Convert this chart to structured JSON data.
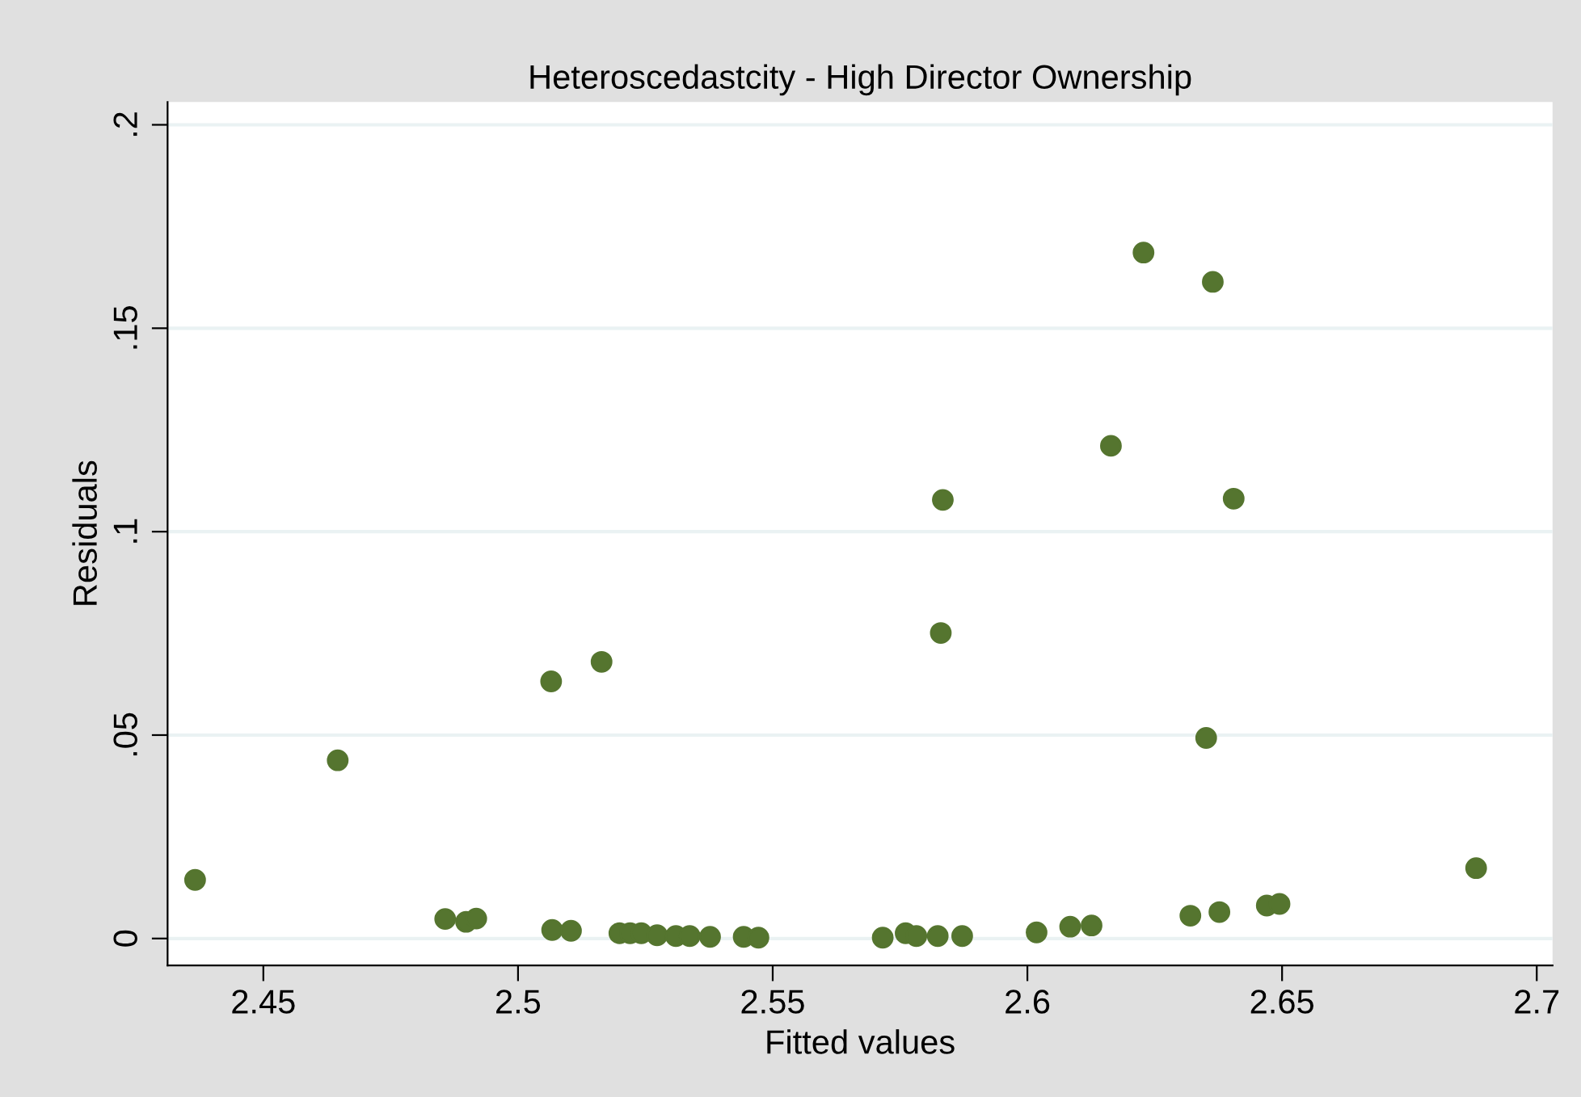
{
  "chart_data": {
    "type": "scatter",
    "title": "Heteroscedastcity - High Director Ownership",
    "xlabel": "Fitted values",
    "ylabel": "Residuals",
    "x": [
      2.4366,
      2.4646,
      2.4857,
      2.4898,
      2.4918,
      2.5065,
      2.5067,
      2.5104,
      2.5164,
      2.5183,
      2.5199,
      2.522,
      2.5242,
      2.5273,
      2.531,
      2.5337,
      2.5377,
      2.5443,
      2.5472,
      2.5716,
      2.5761,
      2.5782,
      2.5814,
      2.5824,
      2.5872,
      2.583,
      2.5834,
      2.6018,
      2.6084,
      2.6126,
      2.6164,
      2.6228,
      2.632,
      2.6351,
      2.6364,
      2.6377,
      2.6405,
      2.647,
      2.6495,
      2.6881
    ],
    "series": [
      {
        "color": "#55752f",
        "values": [
          0.0144,
          0.0438,
          0.0048,
          0.0041,
          0.0049,
          0.0632,
          0.0021,
          0.0019,
          0.068,
          null,
          0.0013,
          0.0013,
          0.0013,
          0.0008,
          0.0006,
          0.0006,
          0.0004,
          0.0004,
          0.0002,
          0.0002,
          0.0013,
          0.0006,
          null,
          0.0006,
          0.0006,
          0.0751,
          0.1078,
          0.0015,
          0.0029,
          0.0032,
          0.1211,
          0.1686,
          0.0056,
          0.0493,
          0.1614,
          0.0065,
          0.1081,
          0.0081,
          0.0085,
          0.0173
        ]
      }
    ],
    "xlim": [
      2.4312,
      2.7031
    ],
    "ylim": [
      -0.0066,
      0.2056
    ],
    "xticks": [
      2.45,
      2.5,
      2.55,
      2.6,
      2.65,
      2.7
    ],
    "yticks": [
      0,
      {
        "value": 0.05,
        "label": ".05"
      },
      {
        "value": 0.1,
        "label": ".1"
      },
      {
        "value": 0.15,
        "label": ".15"
      },
      {
        "value": 0.2,
        "label": ".2"
      }
    ],
    "grid": "y",
    "marker": "circle"
  }
}
